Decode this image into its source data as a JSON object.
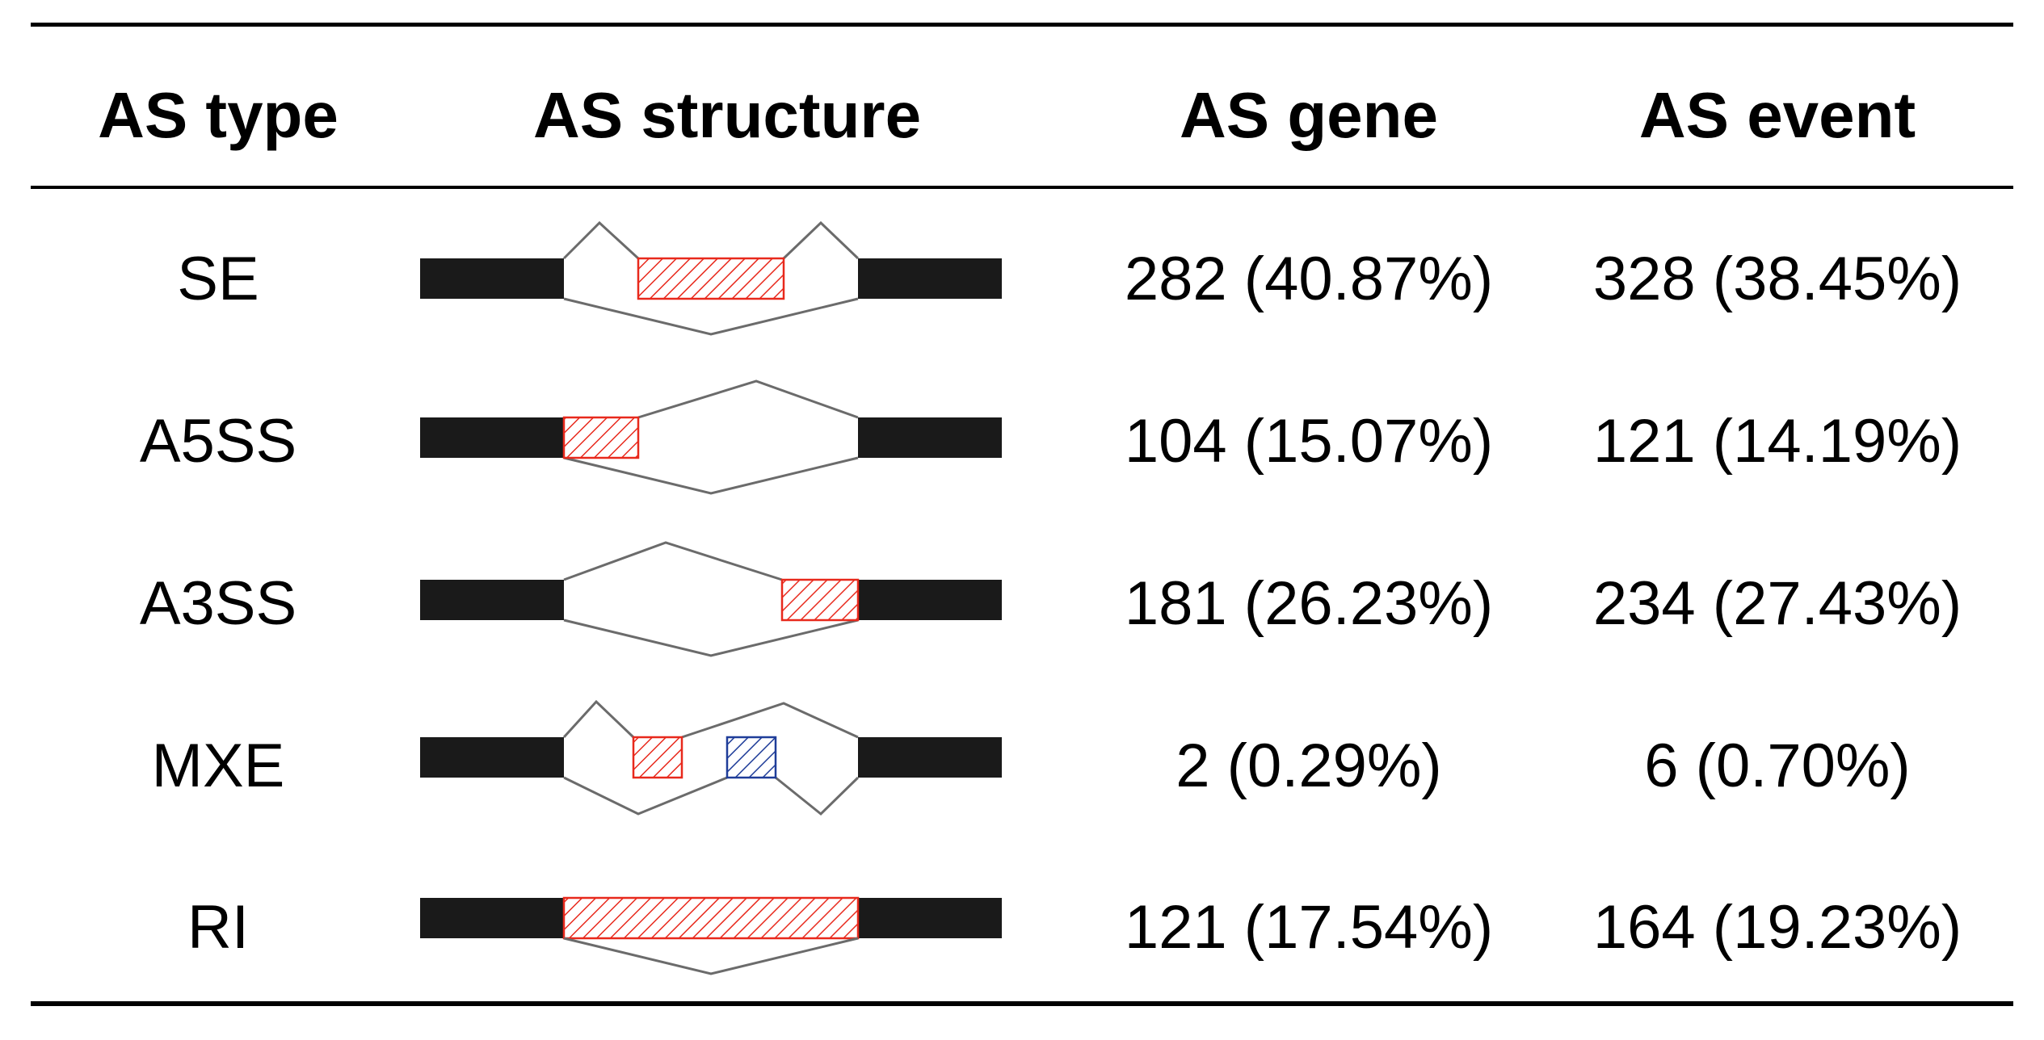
{
  "table": {
    "headers": [
      "AS type",
      "AS structure",
      "AS gene",
      "AS event"
    ],
    "rows": [
      {
        "type": "SE",
        "structure_icon": "skipped-exon-diagram",
        "gene": "282 (40.87%)",
        "event": "328 (38.45%)"
      },
      {
        "type": "A5SS",
        "structure_icon": "alt-5-splice-site-diagram",
        "gene": "104 (15.07%)",
        "event": "121 (14.19%)"
      },
      {
        "type": "A3SS",
        "structure_icon": "alt-3-splice-site-diagram",
        "gene": "181 (26.23%)",
        "event": "234 (27.43%)"
      },
      {
        "type": "MXE",
        "structure_icon": "mutually-exclusive-exons-diagram",
        "gene": "2 (0.29%)",
        "event": "6 (0.70%)"
      },
      {
        "type": "RI",
        "structure_icon": "retained-intron-diagram",
        "gene": "121 (17.54%)",
        "event": "164 (19.23%)"
      }
    ]
  },
  "colors": {
    "constitutive_exon": "#1a1a1a",
    "alternative_exon": "#e8291c",
    "mxe_second_exon": "#1f3d99",
    "junction_line": "#6b6b6b"
  }
}
